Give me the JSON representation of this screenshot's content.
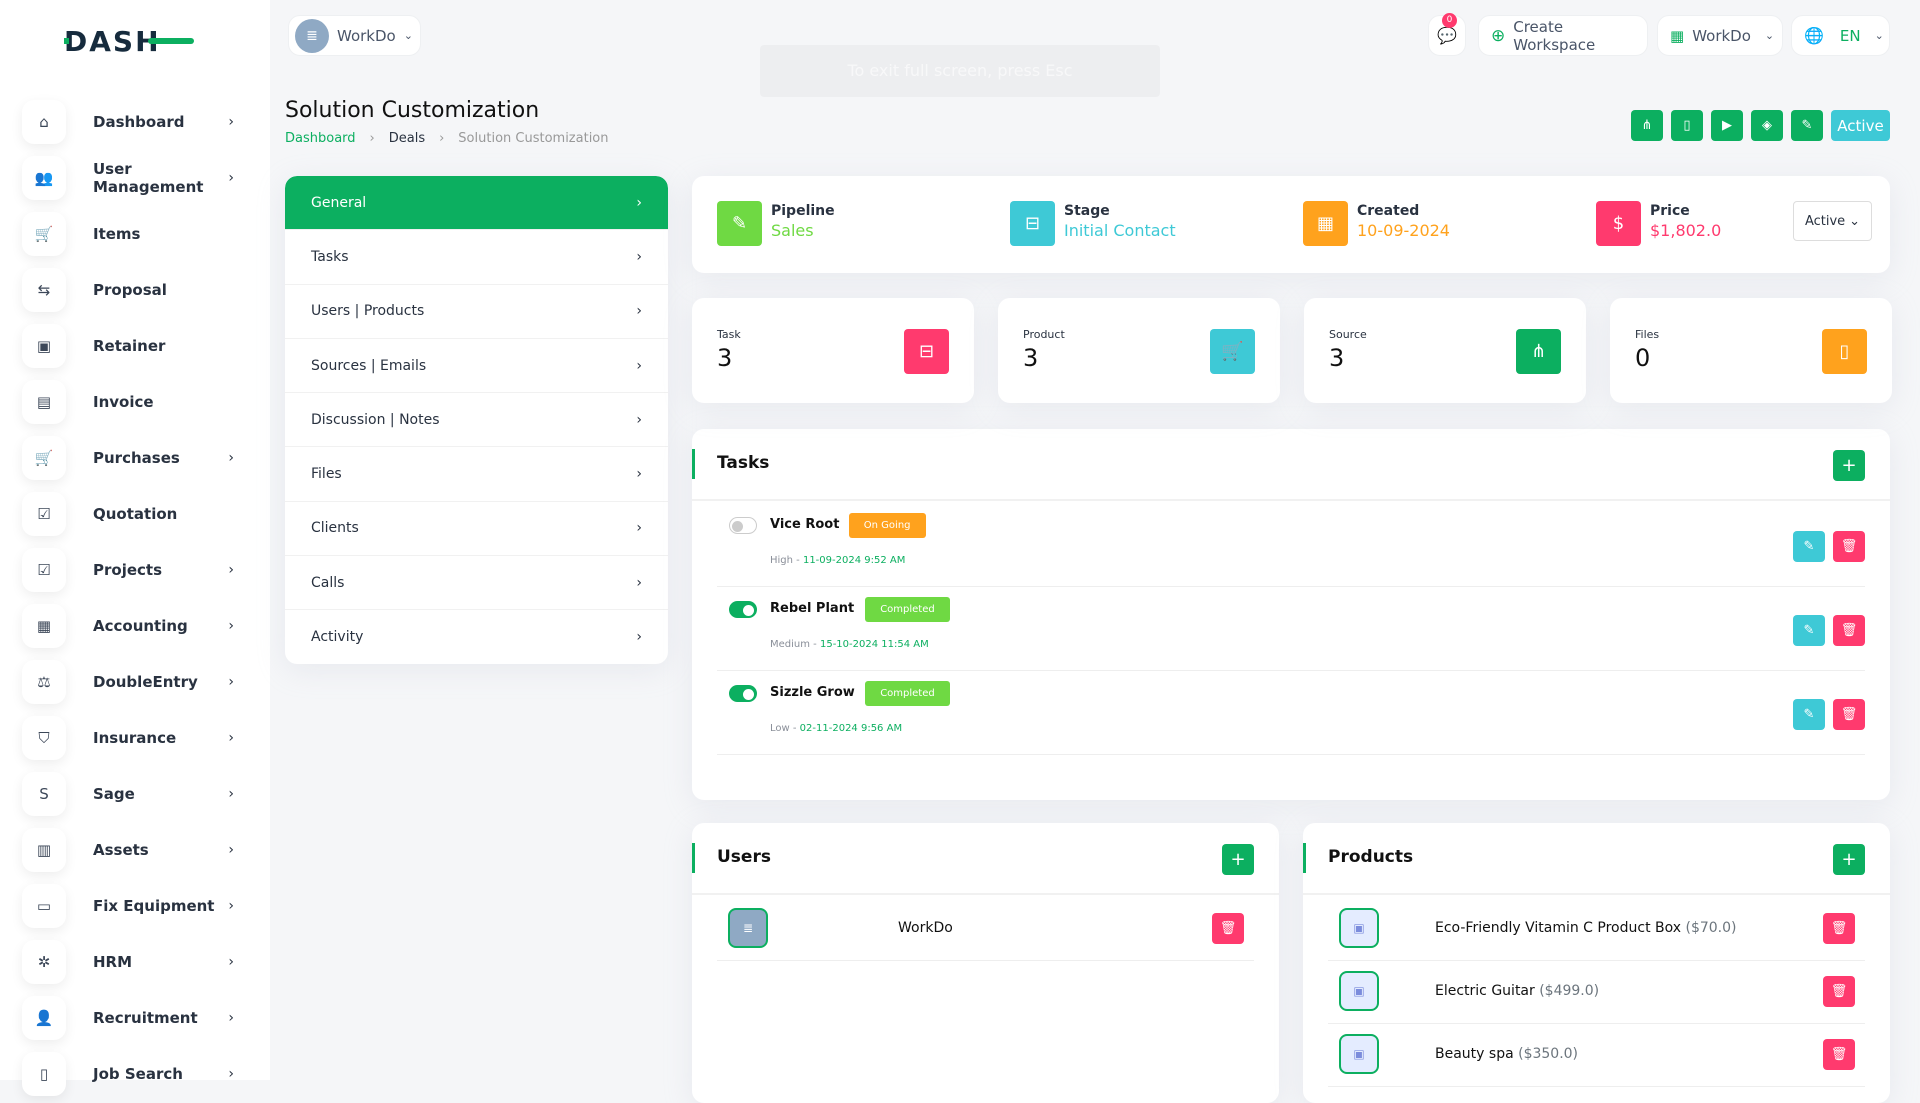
{
  "brand": {
    "logo_text": "DASH"
  },
  "header": {
    "workspace": "WorkDo",
    "messages_count": "0",
    "create_workspace": "Create Workspace",
    "workspace_switch": "WorkDo",
    "language": "EN",
    "fullscreen_hint": "To exit full screen, press Esc"
  },
  "sidebar": {
    "items": [
      {
        "label": "Dashboard",
        "icon": "home-icon",
        "glyph": "⌂",
        "chevron": true
      },
      {
        "label": "User Management",
        "icon": "users-icon",
        "glyph": "👥",
        "chevron": true
      },
      {
        "label": "Items",
        "icon": "cart-icon",
        "glyph": "🛒",
        "chevron": false
      },
      {
        "label": "Proposal",
        "icon": "swap-icon",
        "glyph": "⇆",
        "chevron": false
      },
      {
        "label": "Retainer",
        "icon": "save-icon",
        "glyph": "▣",
        "chevron": false
      },
      {
        "label": "Invoice",
        "icon": "invoice-icon",
        "glyph": "▤",
        "chevron": false
      },
      {
        "label": "Purchases",
        "icon": "cart-icon",
        "glyph": "🛒",
        "chevron": true
      },
      {
        "label": "Quotation",
        "icon": "file-check-icon",
        "glyph": "☑",
        "chevron": false
      },
      {
        "label": "Projects",
        "icon": "checkbox-icon",
        "glyph": "☑",
        "chevron": true
      },
      {
        "label": "Accounting",
        "icon": "grid-icon",
        "glyph": "▦",
        "chevron": true
      },
      {
        "label": "DoubleEntry",
        "icon": "scale-icon",
        "glyph": "⚖",
        "chevron": true
      },
      {
        "label": "Insurance",
        "icon": "shield-icon",
        "glyph": "⛉",
        "chevron": true
      },
      {
        "label": "Sage",
        "icon": "sage-icon",
        "glyph": "S",
        "chevron": true
      },
      {
        "label": "Assets",
        "icon": "calculator-icon",
        "glyph": "▥",
        "chevron": true
      },
      {
        "label": "Fix Equipment",
        "icon": "archive-icon",
        "glyph": "▭",
        "chevron": true
      },
      {
        "label": "HRM",
        "icon": "hrm-icon",
        "glyph": "✲",
        "chevron": true
      },
      {
        "label": "Recruitment",
        "icon": "user-plus-icon",
        "glyph": "👤",
        "chevron": true
      },
      {
        "label": "Job Search",
        "icon": "file-search-icon",
        "glyph": "▯",
        "chevron": true
      }
    ]
  },
  "page": {
    "title": "Solution Customization",
    "breadcrumb": [
      "Dashboard",
      "Deals",
      "Solution Customization"
    ],
    "status_label": "Active"
  },
  "actions": [
    {
      "icon": "sitemap-icon",
      "glyph": "⋔"
    },
    {
      "icon": "file-icon",
      "glyph": "▯"
    },
    {
      "icon": "video-icon",
      "glyph": "▶"
    },
    {
      "icon": "tag-icon",
      "glyph": "◈"
    },
    {
      "icon": "pencil-icon",
      "glyph": "✎"
    }
  ],
  "menu": {
    "items": [
      "General",
      "Tasks",
      "Users | Products",
      "Sources | Emails",
      "Discussion | Notes",
      "Files",
      "Clients",
      "Calls",
      "Activity"
    ],
    "active": 0
  },
  "info": {
    "pipeline": {
      "label": "Pipeline",
      "value": "Sales"
    },
    "stage": {
      "label": "Stage",
      "value": "Initial Contact"
    },
    "created": {
      "label": "Created",
      "value": "10-09-2024"
    },
    "price": {
      "label": "Price",
      "value": "$1,802.0"
    },
    "status_select": "Active"
  },
  "stats": [
    {
      "label": "Task",
      "value": "3",
      "color": "#ff3a6e",
      "icon": "task-tree-icon",
      "glyph": "⊟"
    },
    {
      "label": "Product",
      "value": "3",
      "color": "#3ec9d6",
      "icon": "cart-icon",
      "glyph": "🛒"
    },
    {
      "label": "Source",
      "value": "3",
      "color": "#0caf60",
      "icon": "sitemap-icon",
      "glyph": "⋔"
    },
    {
      "label": "Files",
      "value": "0",
      "color": "#ffa21d",
      "icon": "file-icon",
      "glyph": "▯"
    }
  ],
  "tasks": {
    "title": "Tasks",
    "items": [
      {
        "name": "Vice Root",
        "status": "On Going",
        "status_color": "#ffa21d",
        "done": false,
        "priority": "High",
        "date": "11-09-2024 9:52 AM"
      },
      {
        "name": "Rebel Plant",
        "status": "Completed",
        "status_color": "#6fd943",
        "done": true,
        "priority": "Medium",
        "date": "15-10-2024 11:54 AM"
      },
      {
        "name": "Sizzle Grow",
        "status": "Completed",
        "status_color": "#6fd943",
        "done": true,
        "priority": "Low",
        "date": "02-11-2024 9:56 AM"
      }
    ]
  },
  "users": {
    "title": "Users",
    "items": [
      {
        "name": "WorkDo"
      }
    ]
  },
  "products": {
    "title": "Products",
    "items": [
      {
        "name": "Eco-Friendly Vitamin C Product Box",
        "price": "($70.0)"
      },
      {
        "name": "Electric Guitar",
        "price": "($499.0)"
      },
      {
        "name": "Beauty spa",
        "price": "($350.0)"
      }
    ]
  },
  "colors": {
    "primary": "#0caf60",
    "info": "#3ec9d6",
    "warning": "#ffa21d",
    "danger": "#ff3a6e",
    "success": "#6fd943"
  }
}
